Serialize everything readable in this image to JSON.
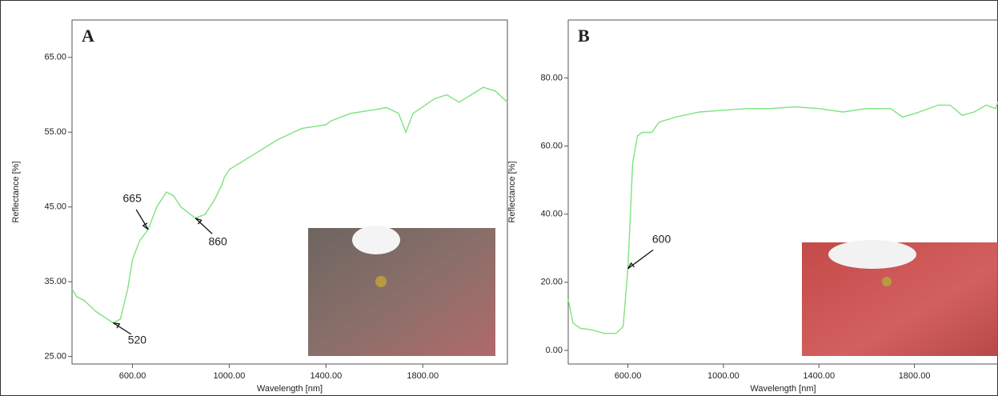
{
  "chart_data": [
    {
      "type": "line",
      "panel_label": "A",
      "x_label": "Wavelength [nm]",
      "y_label": "Reflectance [%]",
      "x": [
        350,
        370,
        400,
        450,
        520,
        550,
        580,
        600,
        630,
        665,
        700,
        740,
        770,
        800,
        860,
        900,
        940,
        970,
        980,
        1000,
        1100,
        1200,
        1300,
        1400,
        1420,
        1500,
        1600,
        1650,
        1700,
        1730,
        1760,
        1850,
        1900,
        1950,
        2000,
        2050,
        2100,
        2150
      ],
      "values": [
        34,
        33,
        32.5,
        31,
        29.5,
        30,
        34,
        38,
        40.5,
        42,
        45,
        47,
        46.5,
        45,
        43.5,
        44,
        46,
        48,
        49,
        50,
        52,
        54,
        55.5,
        56,
        56.5,
        57.5,
        58,
        58.3,
        57.5,
        55,
        57.5,
        59.5,
        60,
        59,
        60,
        61,
        60.5,
        59
      ],
      "color": "#7ee37e",
      "xlim": [
        350,
        2150
      ],
      "ylim": [
        24,
        70
      ],
      "xticks": [
        {
          "value": 600,
          "label": "600.00"
        },
        {
          "value": 1000,
          "label": "1000.00"
        },
        {
          "value": 1400,
          "label": "1400.00"
        },
        {
          "value": 1800,
          "label": "1800.00"
        }
      ],
      "yticks": [
        {
          "value": 25,
          "label": "25.00"
        },
        {
          "value": 35,
          "label": "35.00"
        },
        {
          "value": 45,
          "label": "45.00"
        },
        {
          "value": 55,
          "label": "55.00"
        },
        {
          "value": 65,
          "label": "65.00"
        }
      ],
      "annotations": [
        {
          "text": "665",
          "x": 665,
          "y": 42
        },
        {
          "text": "860",
          "x": 860,
          "y": 43.5
        },
        {
          "text": "520",
          "x": 520,
          "y": 29.5
        }
      ]
    },
    {
      "type": "line",
      "panel_label": "B",
      "x_label": "Wavelength [nm]",
      "y_label": "Reflectance [%]",
      "x": [
        350,
        370,
        400,
        450,
        500,
        550,
        580,
        600,
        620,
        640,
        660,
        700,
        730,
        800,
        900,
        1000,
        1100,
        1200,
        1300,
        1400,
        1500,
        1600,
        1700,
        1750,
        1800,
        1900,
        1950,
        2000,
        2050,
        2100,
        2140,
        2150
      ],
      "values": [
        15,
        8,
        6.5,
        6,
        5,
        5,
        7,
        24,
        55,
        63,
        64,
        64,
        67,
        68.5,
        70,
        70.5,
        71,
        71,
        71.5,
        71,
        70,
        71,
        71,
        68.5,
        69.5,
        72,
        72,
        69,
        70,
        72,
        71,
        73
      ],
      "color": "#7ee37e",
      "xlim": [
        350,
        2150
      ],
      "ylim": [
        -4,
        97
      ],
      "xticks": [
        {
          "value": 600,
          "label": "600.00"
        },
        {
          "value": 1000,
          "label": "1000.00"
        },
        {
          "value": 1400,
          "label": "1400.00"
        },
        {
          "value": 1800,
          "label": "1800.00"
        }
      ],
      "yticks": [
        {
          "value": 0,
          "label": "0.00"
        },
        {
          "value": 20,
          "label": "20.00"
        },
        {
          "value": 40,
          "label": "40.00"
        },
        {
          "value": 60,
          "label": "60.00"
        },
        {
          "value": 80,
          "label": "80.00"
        }
      ],
      "annotations": [
        {
          "text": "600",
          "x": 600,
          "y": 24
        }
      ]
    }
  ]
}
